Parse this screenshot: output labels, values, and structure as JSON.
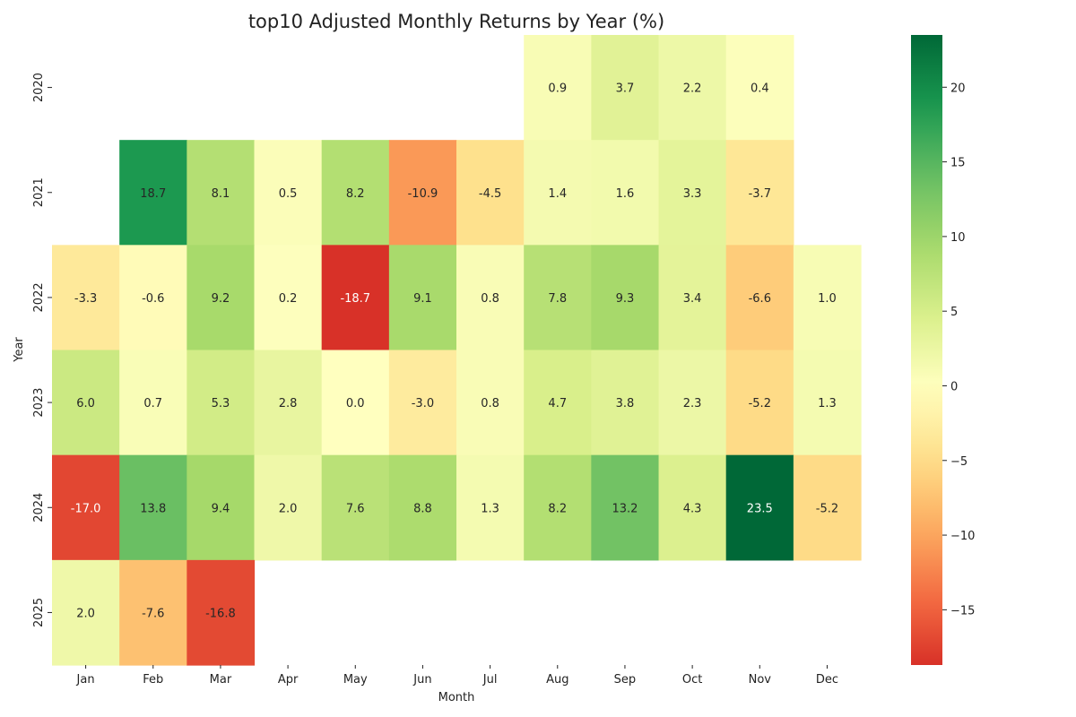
{
  "chart_data": {
    "type": "heatmap",
    "title": "top10 Adjusted Monthly Returns by Year (%)",
    "xlabel": "Month",
    "ylabel": "Year",
    "x_categories": [
      "Jan",
      "Feb",
      "Mar",
      "Apr",
      "May",
      "Jun",
      "Jul",
      "Aug",
      "Sep",
      "Oct",
      "Nov",
      "Dec"
    ],
    "y_categories": [
      "2020",
      "2021",
      "2022",
      "2023",
      "2024",
      "2025"
    ],
    "values": [
      [
        null,
        null,
        null,
        null,
        null,
        null,
        null,
        0.9,
        3.7,
        2.2,
        0.4,
        null
      ],
      [
        null,
        18.7,
        8.1,
        0.5,
        8.2,
        -10.9,
        -4.5,
        1.4,
        1.6,
        3.3,
        -3.7,
        null
      ],
      [
        -3.3,
        -0.6,
        9.2,
        0.2,
        -18.7,
        9.1,
        0.8,
        7.8,
        9.3,
        3.4,
        -6.6,
        1.0
      ],
      [
        6.0,
        0.7,
        5.3,
        2.8,
        0.0,
        -3.0,
        0.8,
        4.7,
        3.8,
        2.3,
        -5.2,
        1.3
      ],
      [
        -17.0,
        13.8,
        9.4,
        2.0,
        7.6,
        8.8,
        1.3,
        8.2,
        13.2,
        4.3,
        23.5,
        -5.2
      ],
      [
        2.0,
        -7.6,
        -16.8,
        null,
        null,
        null,
        null,
        null,
        null,
        null,
        null,
        null
      ]
    ],
    "colormap": "RdYlGn",
    "color_center": 0,
    "vmin": -18.7,
    "vmax": 23.5,
    "colorbar_ticks": [
      -15,
      -10,
      -5,
      0,
      5,
      10,
      15,
      20
    ],
    "annotations": true,
    "grid": false,
    "legend": "colorbar-right"
  }
}
